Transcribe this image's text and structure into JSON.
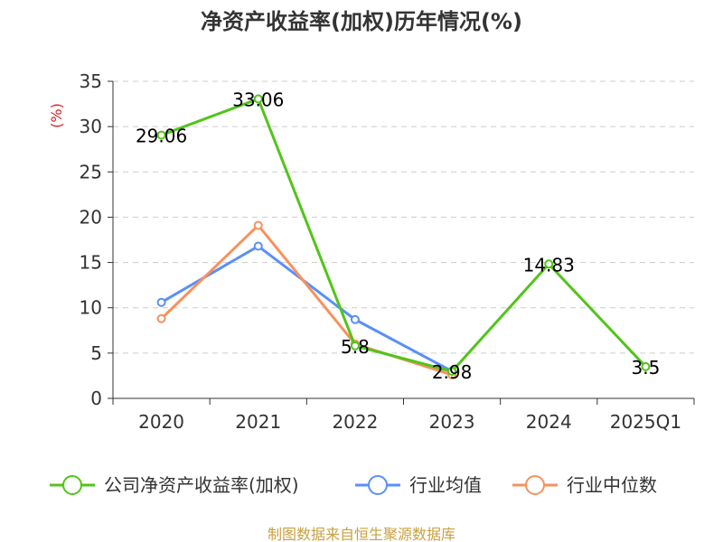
{
  "chart_data": {
    "type": "line",
    "title": "净资产收益率(加权)历年情况(%)",
    "ylabel": "(%)",
    "xlabel": "",
    "categories": [
      "2020",
      "2021",
      "2022",
      "2023",
      "2024",
      "2025Q1"
    ],
    "yticks": [
      "0",
      "5",
      "10",
      "15",
      "20",
      "25",
      "30",
      "35"
    ],
    "ylim": [
      0,
      35
    ],
    "grid": true,
    "legend_position": "bottom",
    "series": [
      {
        "name": "公司净资产收益率(加权)",
        "color": "#52c41a",
        "values": [
          29.06,
          33.06,
          5.8,
          2.98,
          14.83,
          3.5
        ],
        "labels": [
          "29.06",
          "33.06",
          "5.8",
          "2.98",
          "14.83",
          "3.5"
        ]
      },
      {
        "name": "行业均值",
        "color": "#5b8ff9",
        "values": [
          10.6,
          16.8,
          8.7,
          3.0,
          null,
          null
        ]
      },
      {
        "name": "行业中位数",
        "color": "#f6925c",
        "values": [
          8.8,
          19.1,
          6.0,
          2.6,
          null,
          null
        ]
      }
    ]
  },
  "source": "制图数据来自恒生聚源数据库"
}
